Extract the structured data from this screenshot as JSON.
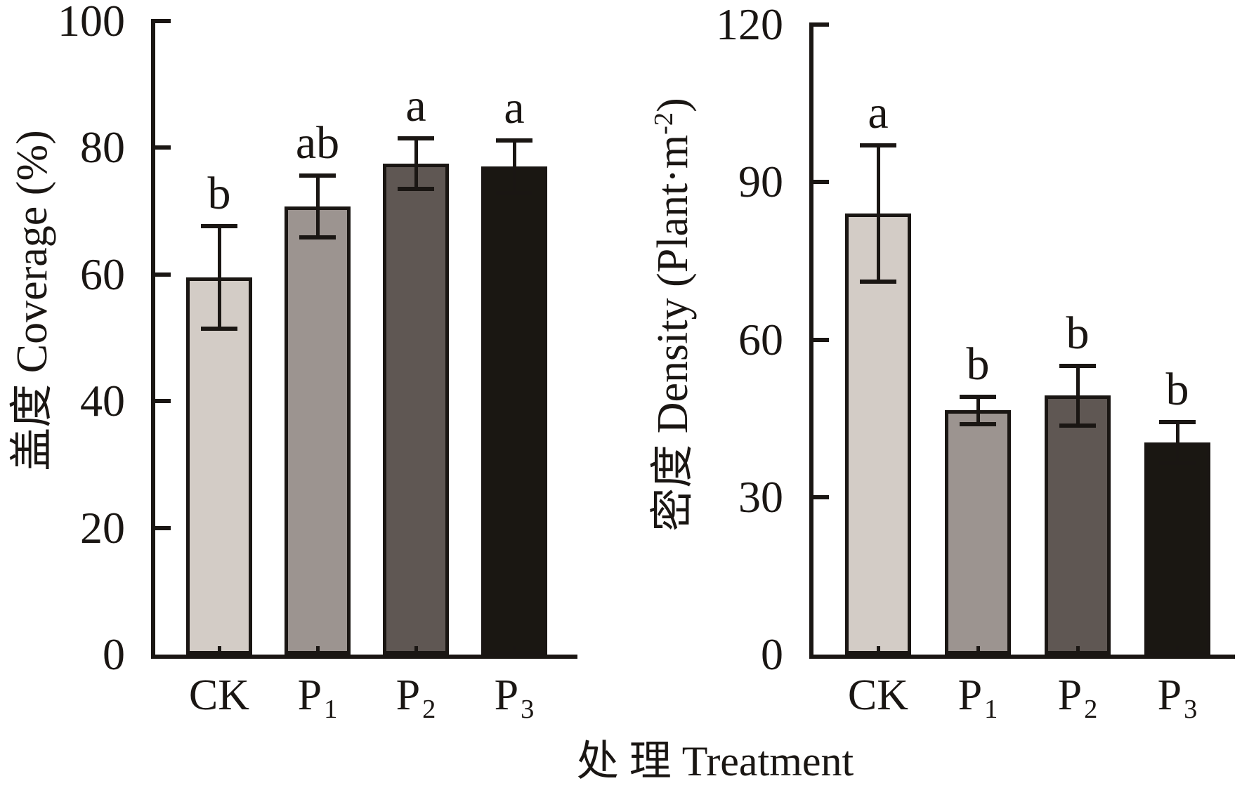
{
  "background": "#ffffff",
  "ink_color": "#1a1613",
  "x_axis_title": "处 理 Treatment",
  "chart_data": [
    {
      "type": "bar",
      "title": "",
      "ylabel_before_sup": "盖度 Coverage (%)",
      "ylabel_sup": "",
      "ylabel_after_sup": "",
      "categories": [
        "CK",
        "P1",
        "P2",
        "P3"
      ],
      "category_labels": [
        {
          "base": "CK",
          "sub": ""
        },
        {
          "base": "P",
          "sub": "1"
        },
        {
          "base": "P",
          "sub": "2"
        },
        {
          "base": "P",
          "sub": "3"
        }
      ],
      "values": [
        59.5,
        70.7,
        77.5,
        77.0
      ],
      "errors": [
        8.1,
        4.9,
        4.0,
        4.2
      ],
      "sig_letters": [
        "b",
        "ab",
        "a",
        "a"
      ],
      "bar_colors": [
        "#d3ccc6",
        "#9c9490",
        "#5f5753",
        "#1a1712"
      ],
      "ylim": [
        0,
        100
      ],
      "yticks": [
        0,
        20,
        40,
        60,
        80,
        100
      ],
      "grid": false,
      "legend": "none"
    },
    {
      "type": "bar",
      "title": "",
      "ylabel_before_sup": "密度 Density (Plant·m",
      "ylabel_sup": "-2",
      "ylabel_after_sup": ")",
      "categories": [
        "CK",
        "P1",
        "P2",
        "P3"
      ],
      "category_labels": [
        {
          "base": "CK",
          "sub": ""
        },
        {
          "base": "P",
          "sub": "1"
        },
        {
          "base": "P",
          "sub": "2"
        },
        {
          "base": "P",
          "sub": "3"
        }
      ],
      "values": [
        84.0,
        46.5,
        49.3,
        40.4
      ],
      "errors": [
        13.0,
        2.6,
        5.7,
        3.9
      ],
      "sig_letters": [
        "a",
        "b",
        "b",
        "b"
      ],
      "bar_colors": [
        "#d3ccc6",
        "#9c9490",
        "#5f5753",
        "#1a1712"
      ],
      "ylim": [
        0,
        120
      ],
      "yticks": [
        0,
        30,
        60,
        90,
        120
      ],
      "grid": false,
      "legend": "none"
    }
  ]
}
